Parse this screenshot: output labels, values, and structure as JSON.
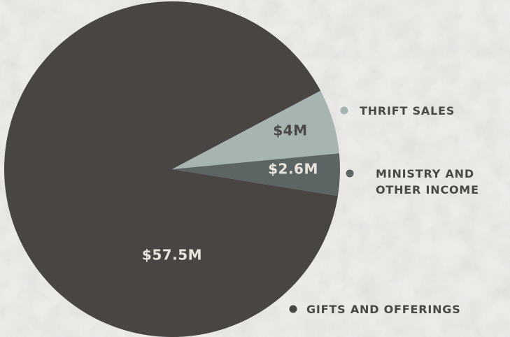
{
  "colors": {
    "background": "#e9e8e5",
    "label_light": "#e8e4dc",
    "label_dark": "#4a4845",
    "legend_text": "#4a4845"
  },
  "chart_data": {
    "type": "pie",
    "start_angle_deg": 332.1,
    "series": [
      {
        "name": "THRIFT SALES",
        "value": 4,
        "value_label": "$4M",
        "color": "#a6b4b2",
        "label_color": "#4a4845",
        "legend_lines": [
          "THRIFT SALES"
        ]
      },
      {
        "name": "MINISTRY AND OTHER INCOME",
        "value": 2.6,
        "value_label": "$2.6M",
        "color": "#5b6664",
        "label_color": "#e8e4dc",
        "legend_lines": [
          "MINISTRY AND",
          "OTHER INCOME"
        ]
      },
      {
        "name": "GIFTS AND OFFERINGS",
        "value": 57.5,
        "value_label": "$57.5M",
        "color": "#484543",
        "label_color": "#e8e4dc",
        "legend_lines": [
          "GIFTS AND OFFERINGS"
        ]
      }
    ]
  }
}
